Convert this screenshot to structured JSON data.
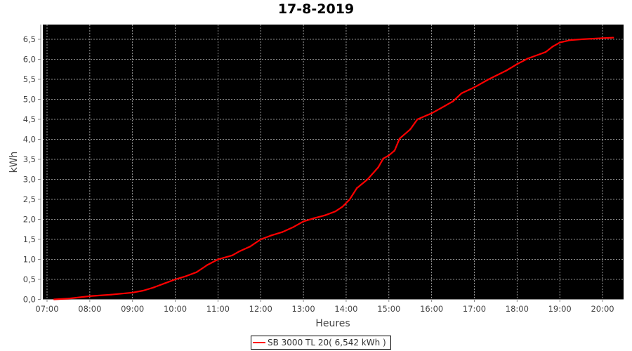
{
  "chart_data": {
    "type": "line",
    "title": "17-8-2019",
    "xlabel": "Heures",
    "ylabel": "kWh",
    "xlim": [
      "06:53",
      "20:30"
    ],
    "ylim": [
      0,
      6.85
    ],
    "x_ticks": [
      "07:00",
      "08:00",
      "09:00",
      "10:00",
      "11:00",
      "12:00",
      "13:00",
      "14:00",
      "15:00",
      "16:00",
      "17:00",
      "18:00",
      "19:00",
      "20:00"
    ],
    "y_ticks": [
      "0,0",
      "0,5",
      "1,0",
      "1,5",
      "2,0",
      "2,5",
      "3,0",
      "3,5",
      "4,0",
      "4,5",
      "5,0",
      "5,5",
      "6,0",
      "6,5"
    ],
    "grid": true,
    "background": "#000000",
    "legend_position": "bottom",
    "series": [
      {
        "name": "SB 3000 TL 20( 6,542 kWh )",
        "color": "#ff0000",
        "x": [
          "07:10",
          "07:30",
          "08:00",
          "08:30",
          "09:00",
          "09:15",
          "09:30",
          "09:45",
          "10:00",
          "10:15",
          "10:30",
          "10:45",
          "11:00",
          "11:20",
          "11:30",
          "11:45",
          "12:00",
          "12:15",
          "12:30",
          "12:45",
          "13:00",
          "13:15",
          "13:30",
          "13:45",
          "13:55",
          "14:05",
          "14:15",
          "14:30",
          "14:45",
          "14:52",
          "15:00",
          "15:08",
          "15:15",
          "15:30",
          "15:40",
          "16:00",
          "16:15",
          "16:30",
          "16:42",
          "17:00",
          "17:20",
          "17:45",
          "18:00",
          "18:15",
          "18:40",
          "18:50",
          "19:00",
          "19:15",
          "19:30",
          "20:00",
          "20:15"
        ],
        "y": [
          0.0,
          0.02,
          0.08,
          0.12,
          0.17,
          0.22,
          0.3,
          0.4,
          0.5,
          0.58,
          0.68,
          0.86,
          1.0,
          1.1,
          1.2,
          1.32,
          1.5,
          1.6,
          1.68,
          1.8,
          1.95,
          2.03,
          2.1,
          2.2,
          2.32,
          2.5,
          2.78,
          3.0,
          3.3,
          3.52,
          3.6,
          3.72,
          4.02,
          4.25,
          4.5,
          4.65,
          4.8,
          4.95,
          5.15,
          5.3,
          5.5,
          5.72,
          5.88,
          6.02,
          6.18,
          6.32,
          6.42,
          6.48,
          6.5,
          6.53,
          6.542
        ]
      }
    ]
  }
}
